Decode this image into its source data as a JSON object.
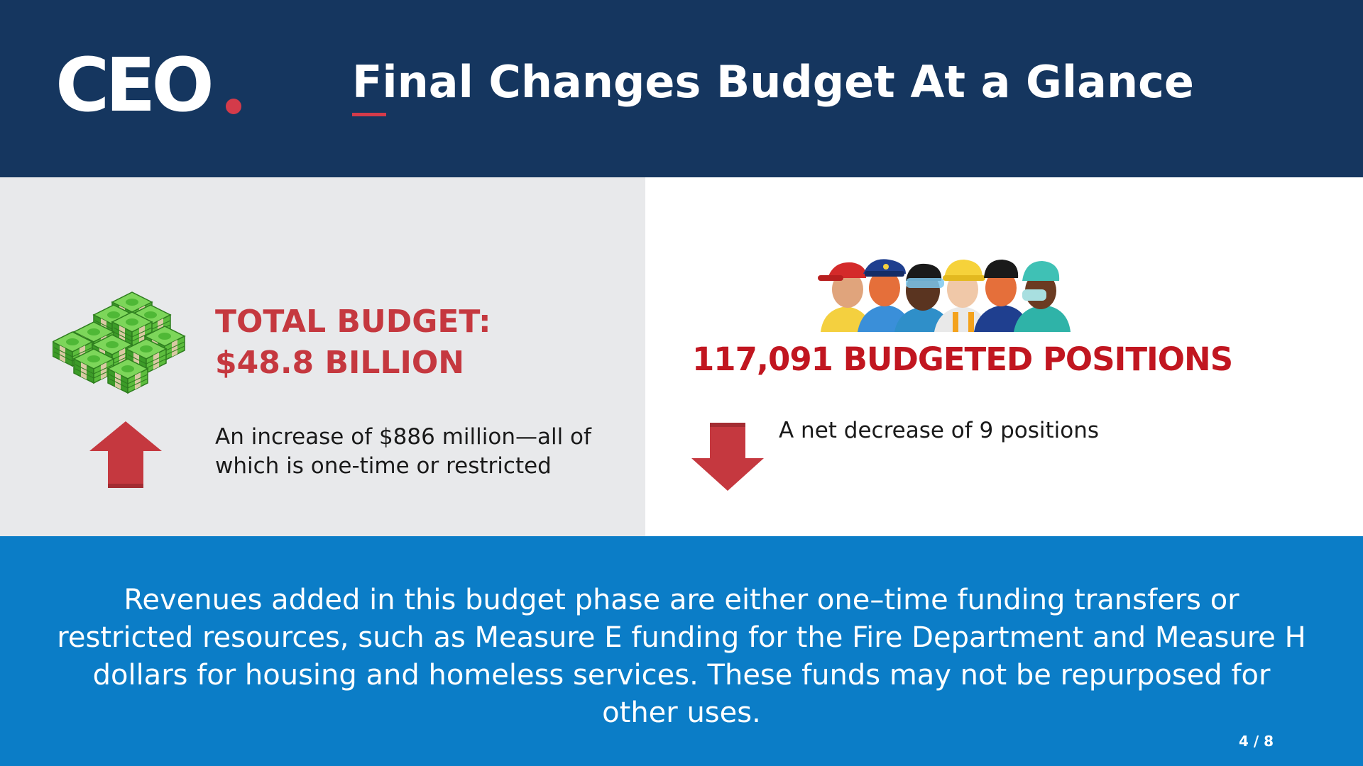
{
  "header": {
    "logo_text": "CEO",
    "title": "Final Changes Budget At a Glance"
  },
  "budget": {
    "title_line1": "TOTAL BUDGET:",
    "title_line2": "$48.8 BILLION",
    "change_text": "An increase of $886 million—all of which is one-time or restricted",
    "icon": "money-stack-icon",
    "trend_icon": "arrow-up-icon"
  },
  "positions": {
    "title": "117,091 BUDGETED POSITIONS",
    "change_text": "A net decrease of 9 positions",
    "icon": "workers-group-icon",
    "trend_icon": "arrow-down-icon"
  },
  "footer": {
    "note": "Revenues added in this budget phase are either one–time funding transfers or restricted resources, such as Measure E funding for the Fire Department and Measure H dollars for housing and homeless services. These funds may not be repurposed for other uses.",
    "page_number": "4 / 8"
  },
  "colors": {
    "header_bg": "#15365f",
    "accent_red": "#c5383f",
    "positions_red": "#c11620",
    "footer_bg": "#0b7dc7",
    "panel_gray": "#e8e9eb",
    "money_green": "#3daa2e"
  }
}
